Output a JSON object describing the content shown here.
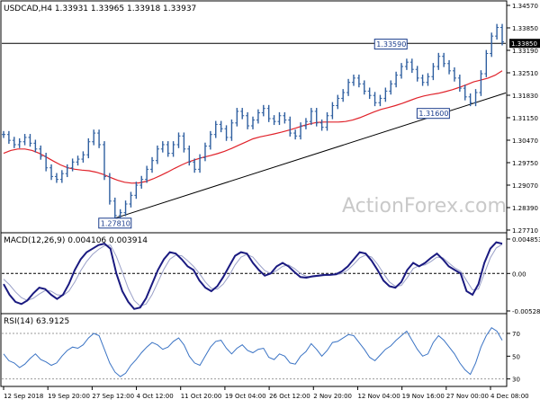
{
  "chart_data": {
    "type": "line",
    "panels": [
      {
        "id": "price",
        "header": "USDCAD,H4  1.33931 1.33965 1.33918 1.33937",
        "ylim": [
          1.274,
          1.3485
        ],
        "yticks": [
          "1.34570",
          "1.33850",
          "1.33190",
          "1.32510",
          "1.31830",
          "1.31150",
          "1.30470",
          "1.29750",
          "1.29070",
          "1.28390",
          "1.27710"
        ],
        "last_value": "1.33850",
        "watermark": "ActionForex.com",
        "series": [
          {
            "role": "price-bars",
            "color": "#2f5fa0",
            "values": [
              1.307,
              1.305,
              1.3035,
              1.3045,
              1.306,
              1.304,
              1.302,
              1.2995,
              1.2955,
              1.2925,
              1.2915,
              1.2935,
              1.2955,
              1.2975,
              1.2985,
              1.3,
              1.3045,
              1.3075,
              1.3035,
              1.2925,
              1.284,
              1.279,
              1.28,
              1.283,
              1.286,
              1.2895,
              1.2915,
              1.295,
              1.298,
              1.302,
              1.3035,
              1.3005,
              1.3035,
              1.3065,
              1.302,
              1.2975,
              1.295,
              1.299,
              1.303,
              1.307,
              1.3105,
              1.309,
              1.306,
              1.311,
              1.315,
              1.3135,
              1.31,
              1.312,
              1.3145,
              1.316,
              1.3125,
              1.3115,
              1.3135,
              1.312,
              1.3075,
              1.3065,
              1.31,
              1.3115,
              1.315,
              1.311,
              1.3095,
              1.3135,
              1.317,
              1.3195,
              1.3215,
              1.325,
              1.3265,
              1.3245,
              1.322,
              1.3205,
              1.318,
              1.3195,
              1.322,
              1.3245,
              1.3275,
              1.3305,
              1.332,
              1.3295,
              1.3265,
              1.325,
              1.327,
              1.3305,
              1.334,
              1.3315,
              1.329,
              1.3265,
              1.323,
              1.32,
              1.318,
              1.3215,
              1.328,
              1.335,
              1.341,
              1.344,
              1.339
            ]
          },
          {
            "role": "moving-average",
            "color": "#e0222a",
            "values": [
              1.3005,
              1.3015,
              1.302,
              1.302,
              1.3015,
              1.3005,
              1.2992,
              1.2978,
              1.2965,
              1.2955,
              1.295,
              1.2947,
              1.2945,
              1.294,
              1.2932,
              1.2922,
              1.2912,
              1.2905,
              1.2902,
              1.2903,
              1.2908,
              1.2917,
              1.2928,
              1.294,
              1.2953,
              1.2965,
              1.2976,
              1.2984,
              1.2991,
              1.2997,
              1.3004,
              1.3012,
              1.3022,
              1.3033,
              1.3044,
              1.3055,
              1.3062,
              1.3067,
              1.3072,
              1.3078,
              1.3085,
              1.3092,
              1.31,
              1.3107,
              1.3112,
              1.3113,
              1.3113,
              1.3113,
              1.3115,
              1.312,
              1.3128,
              1.3138,
              1.3148,
              1.3157,
              1.3163,
              1.317,
              1.3178,
              1.3187,
              1.3196,
              1.3203,
              1.3208,
              1.3212,
              1.3218,
              1.3225,
              1.3233,
              1.3242,
              1.3252,
              1.3258,
              1.3265,
              1.3275,
              1.329
            ]
          }
        ],
        "trendline": {
          "from": [
            21,
            1.2781
          ],
          "to": [
            94,
            1.3205
          ]
        },
        "hline": 1.3385,
        "annotations": [
          {
            "text": "1.27810",
            "x": 21,
            "y": 1.2781
          },
          {
            "text": "1.33590",
            "x": 73,
            "y": 1.3359
          },
          {
            "text": "1.31600",
            "x": 81,
            "y": 1.316
          }
        ]
      },
      {
        "id": "macd",
        "header": "MACD(12,26,9) 0.004106 0.003914",
        "ylim": [
          -0.00528,
          0.00485
        ],
        "yticks": [
          "0.004853",
          "0.00",
          "-0.005284"
        ],
        "series": [
          {
            "role": "macd",
            "color": "#1a1a80",
            "values": [
              -0.0015,
              -0.003,
              -0.004,
              -0.0043,
              -0.0038,
              -0.0028,
              -0.002,
              -0.0022,
              -0.003,
              -0.0036,
              -0.003,
              -0.0015,
              0.0005,
              0.002,
              0.003,
              0.0035,
              0.004,
              0.0042,
              0.0035,
              0.0,
              -0.0025,
              -0.004,
              -0.005,
              -0.0048,
              -0.0035,
              -0.0015,
              0.0005,
              0.002,
              0.003,
              0.0028,
              0.002,
              0.001,
              0.0005,
              -0.001,
              -0.002,
              -0.0025,
              -0.0018,
              -0.0005,
              0.001,
              0.0025,
              0.003,
              0.0028,
              0.0015,
              0.0005,
              -0.0003,
              0.0,
              0.001,
              0.0015,
              0.001,
              0.0002,
              -0.0005,
              -0.0006,
              -0.0004,
              -0.0003,
              -0.0002,
              -0.0002,
              -0.0001,
              0.0003,
              0.001,
              0.002,
              0.003,
              0.0028,
              0.0018,
              0.0005,
              -0.001,
              -0.0018,
              -0.002,
              -0.0012,
              0.0005,
              0.0015,
              0.001,
              0.0015,
              0.0022,
              0.0028,
              0.002,
              0.001,
              0.0005,
              0.0,
              -0.0025,
              -0.003,
              -0.0015,
              0.0015,
              0.0035,
              0.0044,
              0.0042
            ]
          },
          {
            "role": "signal",
            "color": "#9aa0c8",
            "values": [
              -0.0008,
              -0.0016,
              -0.0026,
              -0.0034,
              -0.0038,
              -0.0035,
              -0.0029,
              -0.0024,
              -0.0025,
              -0.003,
              -0.0031,
              -0.0025,
              -0.0012,
              0.0004,
              0.0017,
              0.0027,
              0.0034,
              0.0039,
              0.004,
              0.0024,
              0.0002,
              -0.0021,
              -0.0038,
              -0.0046,
              -0.0043,
              -0.003,
              -0.0012,
              0.0006,
              0.002,
              0.0026,
              0.0025,
              0.0018,
              0.001,
              0.0,
              -0.0012,
              -0.0021,
              -0.0022,
              -0.0015,
              -0.0003,
              0.0012,
              0.0023,
              0.0027,
              0.0023,
              0.0013,
              0.0004,
              0.0,
              0.0004,
              0.001,
              0.0012,
              0.0007,
              0.0,
              -0.0004,
              -0.0005,
              -0.0004,
              -0.0003,
              -0.0002,
              -0.0002,
              0.0,
              0.0005,
              0.0013,
              0.0022,
              0.0026,
              0.0023,
              0.0013,
              0.0,
              -0.0012,
              -0.0018,
              -0.0017,
              -0.0006,
              0.0007,
              0.0011,
              0.0012,
              0.0017,
              0.0023,
              0.0022,
              0.0015,
              0.0008,
              0.0003,
              -0.001,
              -0.0023,
              -0.0022,
              0.0,
              0.0022,
              0.0036,
              0.0041
            ]
          }
        ]
      },
      {
        "id": "rsi",
        "header": "RSI(14) 63.9125",
        "ylim": [
          25,
          85
        ],
        "yticks": [
          "70",
          "50",
          "30"
        ],
        "series": [
          {
            "role": "rsi",
            "color": "#3a73c4",
            "values": [
              52,
              46,
              44,
              40,
              43,
              48,
              52,
              47,
              45,
              42,
              44,
              50,
              55,
              58,
              57,
              60,
              66,
              70,
              68,
              56,
              44,
              36,
              32,
              35,
              42,
              47,
              53,
              58,
              62,
              60,
              56,
              58,
              63,
              66,
              60,
              50,
              44,
              42,
              50,
              58,
              63,
              64,
              57,
              52,
              57,
              60,
              55,
              53,
              56,
              57,
              49,
              47,
              52,
              50,
              44,
              43,
              50,
              54,
              61,
              56,
              50,
              55,
              62,
              63,
              66,
              69,
              68,
              62,
              56,
              49,
              46,
              51,
              56,
              59,
              64,
              68,
              72,
              64,
              56,
              50,
              52,
              62,
              68,
              64,
              58,
              52,
              44,
              38,
              34,
              44,
              58,
              68,
              75,
              72,
              64
            ]
          }
        ]
      }
    ],
    "x_labels": [
      "12 Sep 2018",
      "19 Sep 20:00",
      "27 Sep 12:00",
      "4 Oct 12:00",
      "11 Oct 20:00",
      "19 Oct 04:00",
      "26 Oct 12:00",
      "2 Nov 20:00",
      "12 Nov 04:00",
      "19 Nov 16:00",
      "27 Nov 00:00",
      "4 Dec 08:00"
    ]
  }
}
